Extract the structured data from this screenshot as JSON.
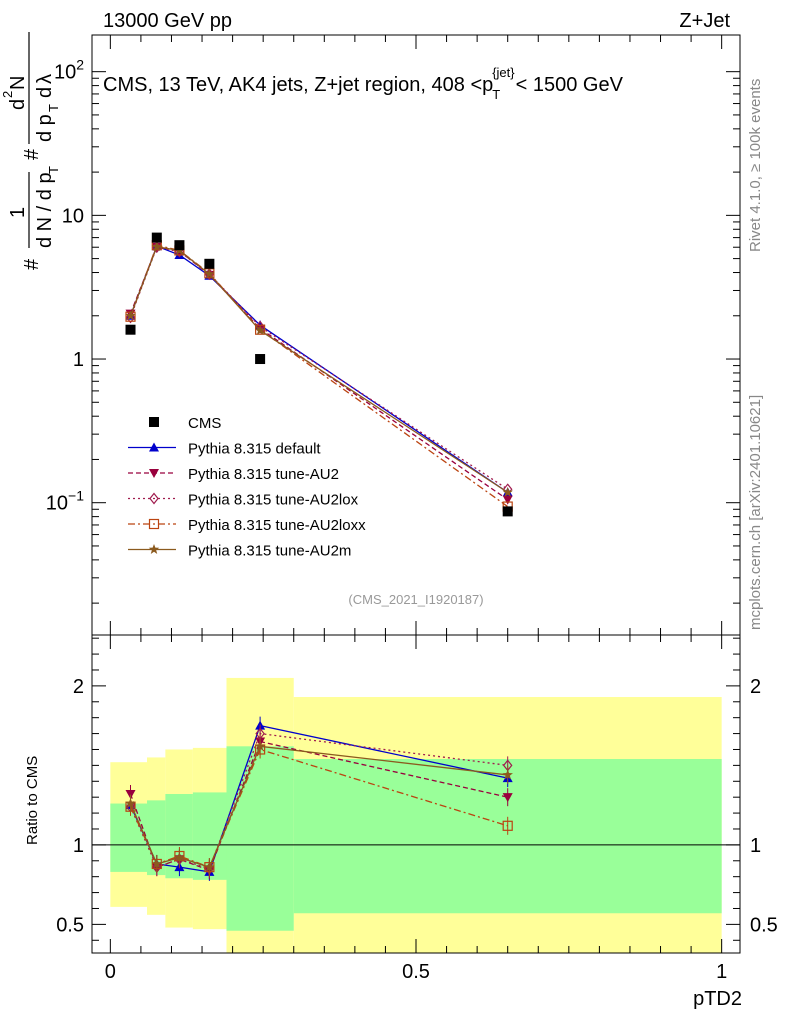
{
  "header": {
    "beam": "13000 GeV pp",
    "process": "Z+Jet"
  },
  "side_labels": {
    "rivet": "Rivet 4.1.0, ≥ 100k events",
    "mcplots": "mcplots.cern.ch [arXiv:2401.10621]"
  },
  "chart_data": [
    {
      "type": "scatter",
      "panel": "main",
      "title": "CMS, 13 TeV, AK4 jets, Z+jet region, 408 <p_T^{jet}< 1500 GeV",
      "title_parts": {
        "pre": "CMS, 13 TeV, AK4 jets, Z+jet region, 408 <p",
        "sub": "T",
        "sup": "{jet}",
        "post": "< 1500 GeV"
      },
      "analysis_id": "(CMS_2021_I1920187)",
      "ylabel": "1/N dN/dpT d²N/dpT dλ",
      "yscale": "log",
      "ylim": [
        0.012,
        180
      ],
      "xlim": [
        -0.03,
        1.03
      ],
      "y_ticks": [
        {
          "value": 100,
          "base": "10",
          "exp": "2"
        },
        {
          "value": 10,
          "label": "10"
        },
        {
          "value": 1,
          "label": "1"
        },
        {
          "value": 0.1,
          "base": "10",
          "exp": "−1"
        }
      ],
      "x": [
        0.033,
        0.076,
        0.113,
        0.162,
        0.245,
        0.65
      ],
      "series": [
        {
          "name": "CMS",
          "color": "#000000",
          "marker": "square",
          "dash": "none",
          "values": [
            1.6,
            7.0,
            6.2,
            4.6,
            1.0,
            0.087
          ]
        },
        {
          "name": "Pythia 8.315 default",
          "color": "#0000cc",
          "marker": "triangle-up",
          "dash": "none",
          "values": [
            2.0,
            6.1,
            5.3,
            3.8,
            1.72,
            0.118
          ]
        },
        {
          "name": "Pythia 8.315 tune-AU2",
          "color": "#99003d",
          "marker": "triangle-down",
          "dash": "5,3",
          "values": [
            2.07,
            6.05,
            5.65,
            3.85,
            1.63,
            0.105
          ]
        },
        {
          "name": "Pythia 8.315 tune-AU2lox",
          "color": "#a01c4e",
          "marker": "diamond-open",
          "dash": "2,3",
          "values": [
            1.95,
            6.0,
            5.6,
            3.9,
            1.68,
            0.124
          ]
        },
        {
          "name": "Pythia 8.315 tune-AU2loxx",
          "color": "#bb4411",
          "marker": "square-open",
          "dash": "7,3,2,3",
          "values": [
            1.97,
            6.2,
            5.7,
            3.95,
            1.6,
            0.094
          ]
        },
        {
          "name": "Pythia 8.315 tune-AU2m",
          "color": "#8b5a1e",
          "marker": "star",
          "dash": "none",
          "values": [
            2.0,
            6.05,
            5.7,
            3.9,
            1.58,
            0.118
          ]
        }
      ]
    },
    {
      "type": "scatter",
      "panel": "ratio",
      "ylabel": "Ratio to CMS",
      "xlabel": "pTD2",
      "ylim": [
        0.32,
        2.32
      ],
      "xlim": [
        -0.03,
        1.03
      ],
      "reference_line": 1,
      "y_ticks": [
        0.5,
        1,
        2
      ],
      "y_tick_labels": [
        "0.5",
        "1",
        "2"
      ],
      "x_ticks": [
        0,
        0.5,
        1
      ],
      "x_tick_labels": [
        "0",
        "0.5",
        "1"
      ],
      "uncertainty_bands": [
        {
          "xlo": 0.0,
          "xhi": 0.06,
          "inner": [
            0.83,
            1.26
          ],
          "outer": [
            0.61,
            1.52
          ]
        },
        {
          "xlo": 0.06,
          "xhi": 0.09,
          "inner": [
            0.81,
            1.28
          ],
          "outer": [
            0.56,
            1.55
          ]
        },
        {
          "xlo": 0.09,
          "xhi": 0.135,
          "inner": [
            0.79,
            1.32
          ],
          "outer": [
            0.48,
            1.6
          ]
        },
        {
          "xlo": 0.135,
          "xhi": 0.19,
          "inner": [
            0.78,
            1.33
          ],
          "outer": [
            0.47,
            1.61
          ]
        },
        {
          "xlo": 0.19,
          "xhi": 0.3,
          "inner": [
            0.46,
            1.62
          ],
          "outer": [
            0.32,
            2.05
          ]
        },
        {
          "xlo": 0.3,
          "xhi": 1.0,
          "inner": [
            0.57,
            1.54
          ],
          "outer": [
            0.32,
            1.93
          ]
        }
      ],
      "series": [
        {
          "name": "Pythia 8.315 default",
          "values": [
            1.25,
            0.88,
            0.86,
            0.83,
            1.75,
            1.42
          ]
        },
        {
          "name": "Pythia 8.315 tune-AU2",
          "values": [
            1.32,
            0.86,
            0.91,
            0.84,
            1.65,
            1.3
          ]
        },
        {
          "name": "Pythia 8.315 tune-AU2lox",
          "values": [
            1.24,
            0.86,
            0.91,
            0.85,
            1.7,
            1.5
          ]
        },
        {
          "name": "Pythia 8.315 tune-AU2loxx",
          "values": [
            1.24,
            0.88,
            0.93,
            0.86,
            1.6,
            1.12
          ]
        },
        {
          "name": "Pythia 8.315 tune-AU2m",
          "values": [
            1.26,
            0.88,
            0.92,
            0.86,
            1.62,
            1.44
          ]
        }
      ]
    }
  ]
}
